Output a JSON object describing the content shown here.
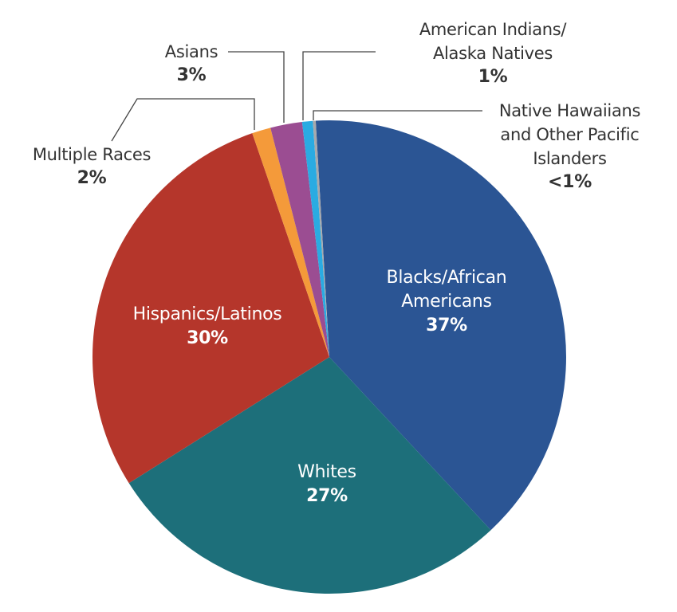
{
  "chart_data": {
    "type": "pie",
    "title": "",
    "slices": [
      {
        "label": "Blacks/African Americans",
        "value_label": "37%",
        "value": 37,
        "color": "#2B5594",
        "start_deg": -3.3,
        "end_deg": 137.0
      },
      {
        "label": "Whites",
        "value_label": "27%",
        "value": 27,
        "color": "#1D6F7A",
        "start_deg": 137.0,
        "end_deg": 237.8
      },
      {
        "label": "Hispanics/Latinos",
        "value_label": "30%",
        "value": 30,
        "color": "#B5362B",
        "start_deg": 237.8,
        "end_deg": 341.0
      },
      {
        "label": "Multiple Races",
        "value_label": "2%",
        "value": 2,
        "color": "#F49A3A",
        "start_deg": 341.0,
        "end_deg": 345.6
      },
      {
        "label": "Asians",
        "value_label": "3%",
        "value": 3,
        "color": "#9B4D92",
        "start_deg": 345.6,
        "end_deg": 353.4
      },
      {
        "label": "American Indians/ Alaska Natives",
        "value_label": "1%",
        "value": 1,
        "color": "#2AABE2",
        "start_deg": 353.4,
        "end_deg": 356.0
      },
      {
        "label": "Native Hawaiians and Other Pacific Islanders",
        "value_label": "<1%",
        "value": 0.5,
        "color": "#A7A9AC",
        "start_deg": 356.0,
        "end_deg": 356.7
      }
    ],
    "legend": "none (labels placed on and around slices)",
    "center": [
      413,
      448
    ],
    "radius": 297
  },
  "labels": {
    "blacks": {
      "line1": "Blacks/African",
      "line2": "Americans",
      "pct": "37%"
    },
    "whites": {
      "line1": "Whites",
      "pct": "27%"
    },
    "hispanics": {
      "line1": "Hispanics/Latinos",
      "pct": "30%"
    },
    "multiple": {
      "line1": "Multiple Races",
      "pct": "2%"
    },
    "asians": {
      "line1": "Asians",
      "pct": "3%"
    },
    "aian": {
      "line1": "American Indians/",
      "line2": "Alaska Natives",
      "pct": "1%"
    },
    "nhpi": {
      "line1": "Native Hawaiians",
      "line2": "and Other Pacific",
      "line3": "Islanders",
      "pct": "<1%"
    }
  },
  "leader_color": "#444444"
}
